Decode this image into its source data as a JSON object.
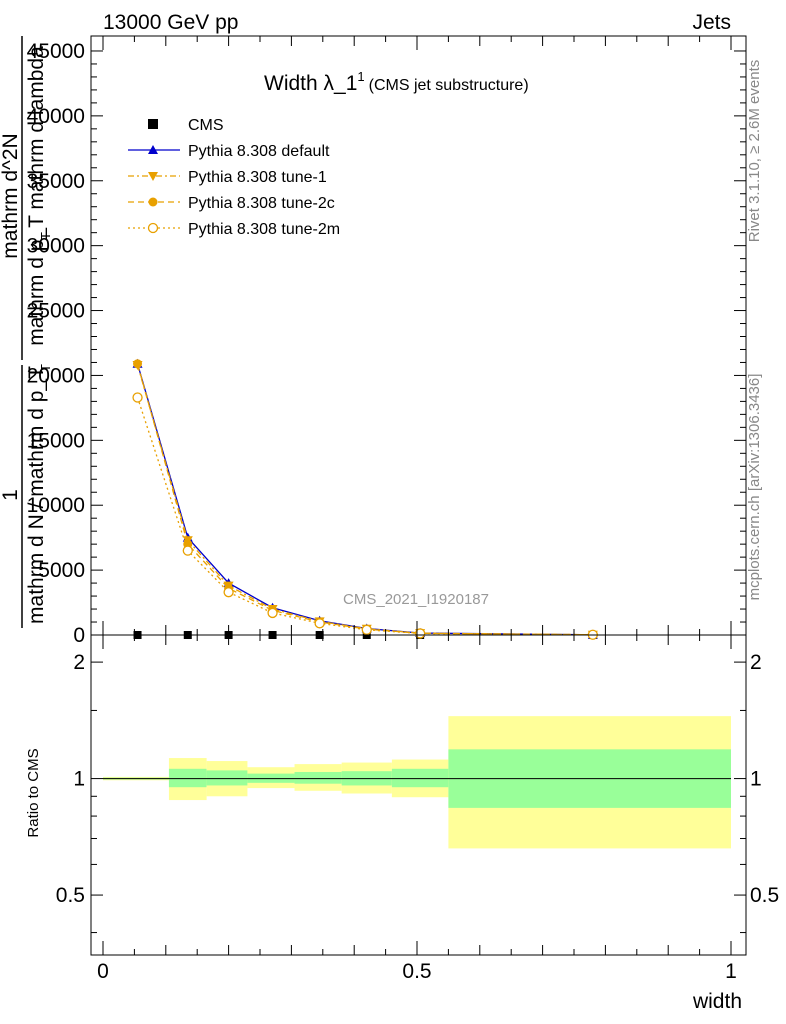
{
  "header": {
    "process": "13000 GeV pp",
    "category": "Jets"
  },
  "side_labels": {
    "rivet": "Rivet 3.1.10, ≥ 2.6M events",
    "mcplots": "mcplots.cern.ch [arXiv:1306.3436]"
  },
  "watermark": "CMS_2021_I1920187",
  "chart_data": [
    {
      "type": "line",
      "title": "Width λ_1",
      "title_superscript": "1",
      "title_note": "(CMS jet substructure)",
      "xlabel": "width",
      "ylabel_parts": [
        "1",
        "mathrm d N / mathrm d p_T",
        "mathrm d^2N",
        "mathrm d p_T mathrm d lambda"
      ],
      "ylabel_subscripts": [
        "T",
        "T"
      ],
      "xlim": [
        0,
        1
      ],
      "ylim": [
        0,
        46000
      ],
      "y_ticks": [
        0,
        5000,
        10000,
        15000,
        20000,
        25000,
        30000,
        35000,
        40000,
        45000
      ],
      "y_tick_labels": [
        "0",
        "5000",
        "10000",
        "15000",
        "20000",
        "25000",
        "30000",
        "35000",
        "40000",
        "45000"
      ],
      "legend_position": "top-left",
      "x": [
        0.055,
        0.135,
        0.2,
        0.27,
        0.345,
        0.42,
        0.505,
        0.78
      ],
      "series": [
        {
          "name": "CMS",
          "color": "#000000",
          "marker": "square",
          "line": "none",
          "values": [
            0,
            0,
            0,
            0,
            0,
            0,
            0,
            0
          ]
        },
        {
          "name": "Pythia 8.308 default",
          "color": "#0000cc",
          "marker": "triangle-up",
          "line": "solid",
          "values": [
            20900,
            7500,
            4000,
            2100,
            1100,
            500,
            150,
            20
          ]
        },
        {
          "name": "Pythia 8.308 tune-1",
          "color": "#e8a000",
          "marker": "triangle-down",
          "line": "dashdot",
          "values": [
            20800,
            7300,
            3800,
            2000,
            1050,
            480,
            140,
            20
          ]
        },
        {
          "name": "Pythia 8.308 tune-2c",
          "color": "#e8a000",
          "marker": "circle",
          "line": "dashed",
          "values": [
            20900,
            7000,
            3600,
            1900,
            1000,
            450,
            130,
            20
          ]
        },
        {
          "name": "Pythia 8.308 tune-2m",
          "color": "#e8a000",
          "marker": "circle-open",
          "line": "dotted",
          "values": [
            18300,
            6500,
            3300,
            1700,
            900,
            400,
            120,
            20
          ]
        }
      ]
    },
    {
      "type": "area",
      "ylabel": "Ratio to CMS",
      "xlabel": "width",
      "xlim": [
        0,
        1
      ],
      "ylim": [
        0.35,
        2.35
      ],
      "y_scale": "log",
      "y_ticks": [
        0.5,
        1,
        2
      ],
      "y_tick_labels": [
        "0.5",
        "1",
        "2"
      ],
      "x_ticks": [
        0,
        0.5,
        1
      ],
      "x_tick_labels": [
        "0",
        "0.5",
        "1"
      ],
      "reference_line": 1,
      "bins": [
        {
          "x0": 0.0,
          "x1": 0.105,
          "stat_lo": 0.995,
          "stat_hi": 1.005,
          "tot_lo": 0.99,
          "tot_hi": 1.01
        },
        {
          "x0": 0.105,
          "x1": 0.165,
          "stat_lo": 0.95,
          "stat_hi": 1.06,
          "tot_lo": 0.88,
          "tot_hi": 1.13
        },
        {
          "x0": 0.165,
          "x1": 0.23,
          "stat_lo": 0.96,
          "stat_hi": 1.05,
          "tot_lo": 0.9,
          "tot_hi": 1.11
        },
        {
          "x0": 0.23,
          "x1": 0.305,
          "stat_lo": 0.975,
          "stat_hi": 1.03,
          "tot_lo": 0.945,
          "tot_hi": 1.07
        },
        {
          "x0": 0.305,
          "x1": 0.38,
          "stat_lo": 0.97,
          "stat_hi": 1.04,
          "tot_lo": 0.93,
          "tot_hi": 1.09
        },
        {
          "x0": 0.38,
          "x1": 0.46,
          "stat_lo": 0.96,
          "stat_hi": 1.045,
          "tot_lo": 0.915,
          "tot_hi": 1.1
        },
        {
          "x0": 0.46,
          "x1": 0.55,
          "stat_lo": 0.95,
          "stat_hi": 1.06,
          "tot_lo": 0.895,
          "tot_hi": 1.12
        },
        {
          "x0": 0.55,
          "x1": 1.0,
          "stat_lo": 0.84,
          "stat_hi": 1.19,
          "tot_lo": 0.66,
          "tot_hi": 1.45
        }
      ],
      "stat_color": "#99ff99",
      "tot_color": "#ffff99"
    }
  ]
}
